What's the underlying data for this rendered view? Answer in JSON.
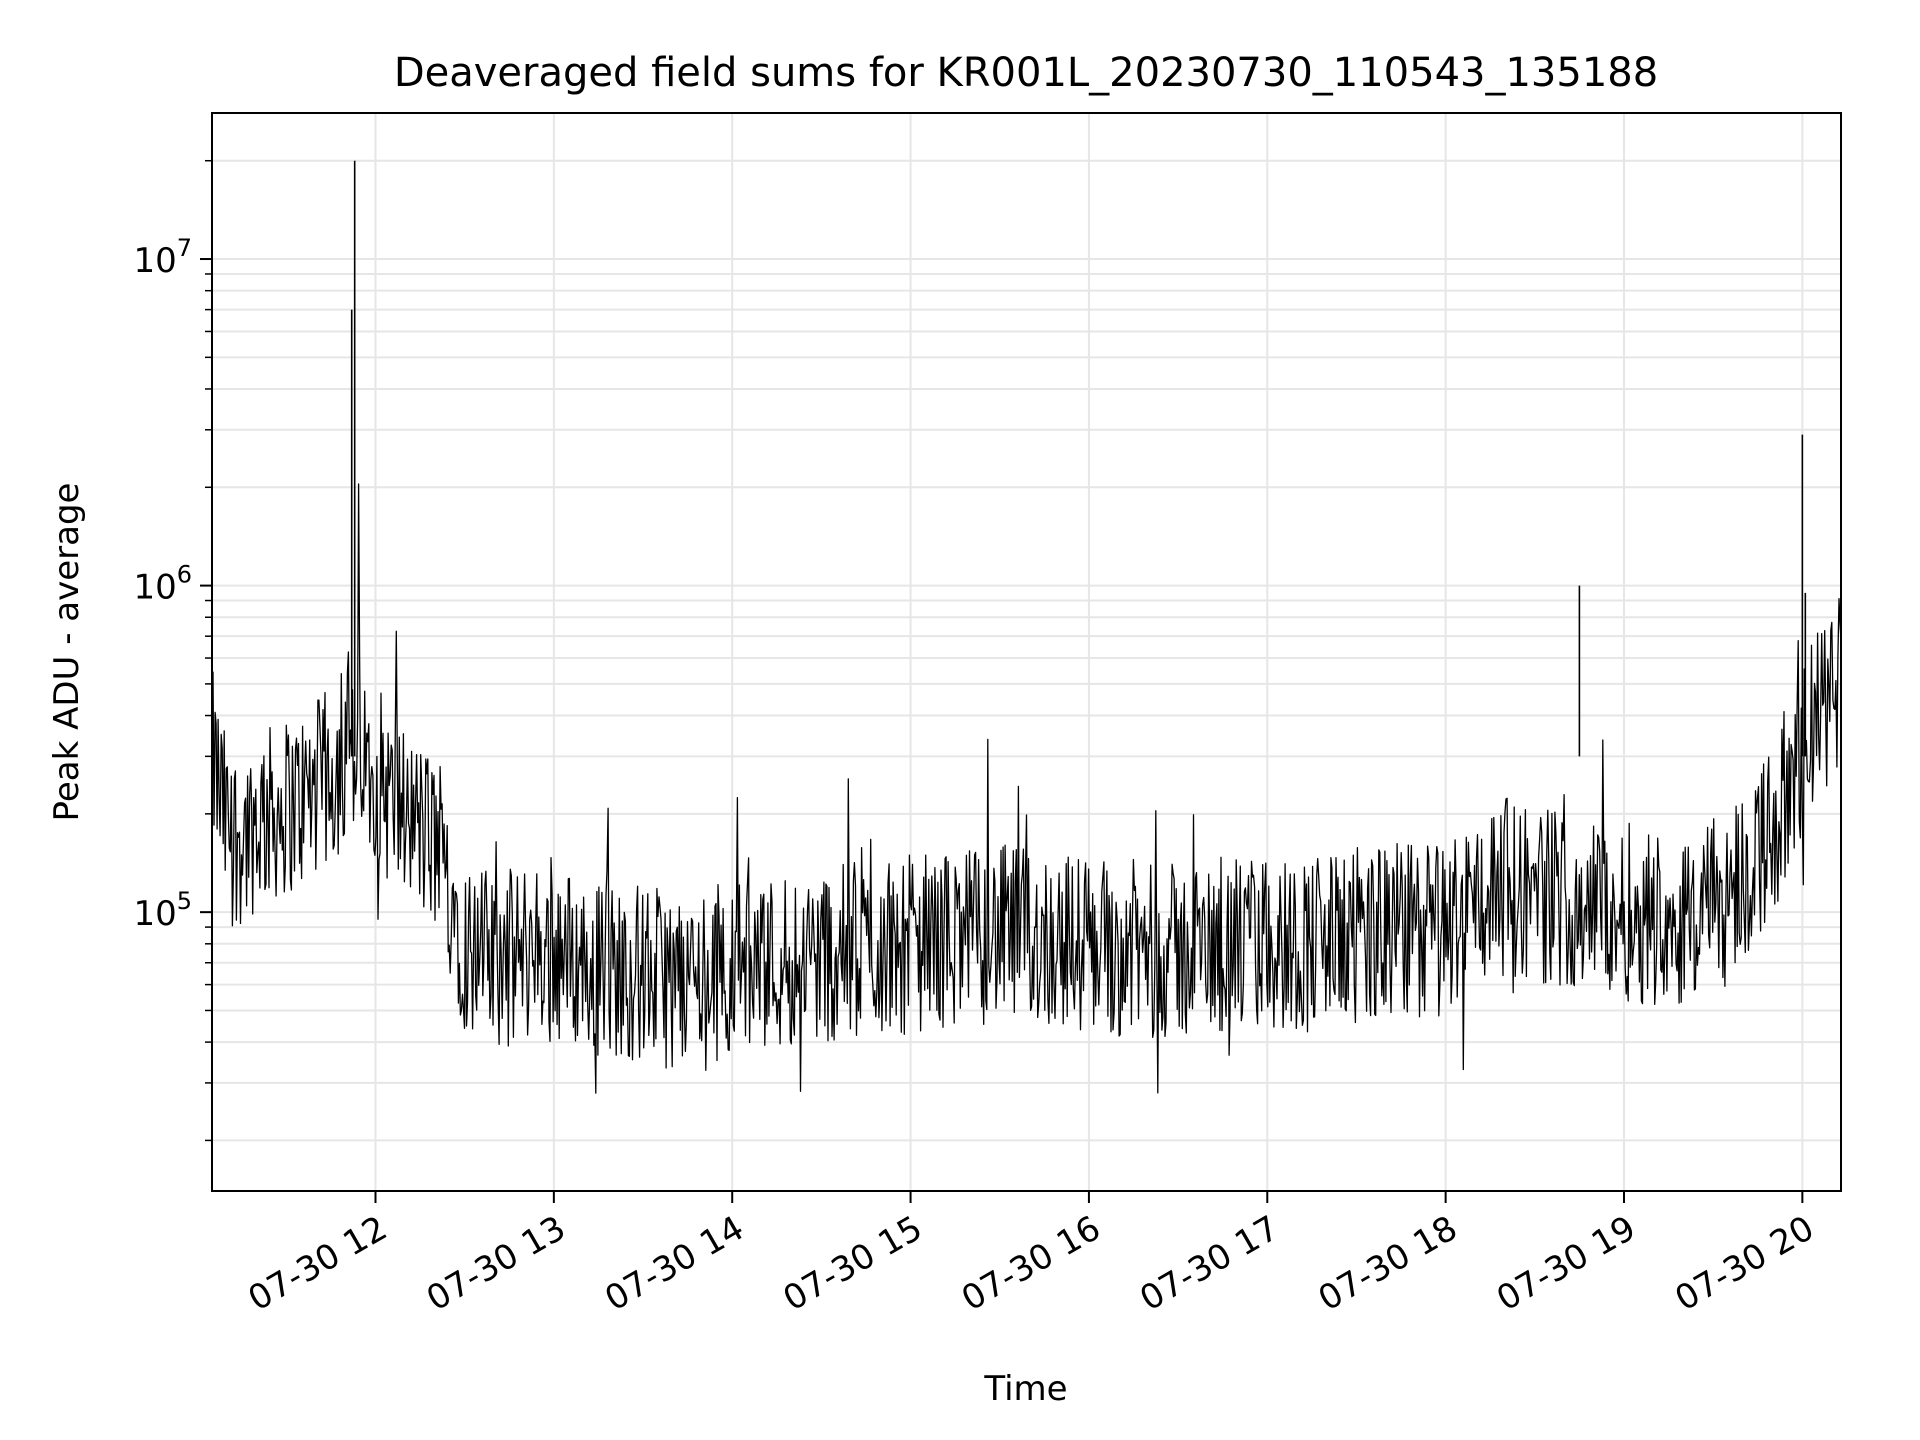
{
  "chart_data": {
    "type": "line",
    "title": "Deaveraged field sums for KR001L_20230730_110543_135188",
    "xlabel": "Time",
    "ylabel": "Peak ADU - average",
    "y_scale": "log",
    "ylim": [
      14000,
      28000000
    ],
    "xlim": [
      "2023-07-30 11:05",
      "2023-07-30 20:13"
    ],
    "grid": true,
    "line_color": "#000000",
    "x_ticks": [
      {
        "t": "2023-07-30 12:00",
        "label": "07-30 12"
      },
      {
        "t": "2023-07-30 13:00",
        "label": "07-30 13"
      },
      {
        "t": "2023-07-30 14:00",
        "label": "07-30 14"
      },
      {
        "t": "2023-07-30 15:00",
        "label": "07-30 15"
      },
      {
        "t": "2023-07-30 16:00",
        "label": "07-30 16"
      },
      {
        "t": "2023-07-30 17:00",
        "label": "07-30 17"
      },
      {
        "t": "2023-07-30 18:00",
        "label": "07-30 18"
      },
      {
        "t": "2023-07-30 19:00",
        "label": "07-30 19"
      },
      {
        "t": "2023-07-30 20:00",
        "label": "07-30 20"
      }
    ],
    "y_ticks": [
      {
        "value": 100000,
        "base": "10",
        "exp": "5"
      },
      {
        "value": 1000000,
        "base": "10",
        "exp": "6"
      },
      {
        "value": 10000000,
        "base": "10",
        "exp": "7"
      }
    ],
    "series": [
      {
        "x": [
          "2023-07-30 11:05",
          "2023-07-30 11:10",
          "2023-07-30 11:15",
          "2023-07-30 11:20",
          "2023-07-30 11:25",
          "2023-07-30 11:30",
          "2023-07-30 11:35",
          "2023-07-30 11:40",
          "2023-07-30 11:45",
          "2023-07-30 11:50",
          "2023-07-30 11:53",
          "2023-07-30 11:55",
          "2023-07-30 12:00",
          "2023-07-30 12:05",
          "2023-07-30 12:10",
          "2023-07-30 12:15",
          "2023-07-30 12:20",
          "2023-07-30 12:25",
          "2023-07-30 12:30",
          "2023-07-30 12:35",
          "2023-07-30 12:40",
          "2023-07-30 12:45",
          "2023-07-30 12:50",
          "2023-07-30 12:55",
          "2023-07-30 13:00",
          "2023-07-30 13:10",
          "2023-07-30 13:20",
          "2023-07-30 13:30",
          "2023-07-30 13:40",
          "2023-07-30 13:50",
          "2023-07-30 14:00",
          "2023-07-30 14:10",
          "2023-07-30 14:20",
          "2023-07-30 14:30",
          "2023-07-30 14:40",
          "2023-07-30 14:50",
          "2023-07-30 15:00",
          "2023-07-30 15:10",
          "2023-07-30 15:20",
          "2023-07-30 15:30",
          "2023-07-30 15:40",
          "2023-07-30 15:50",
          "2023-07-30 16:00",
          "2023-07-30 16:10",
          "2023-07-30 16:20",
          "2023-07-30 16:30",
          "2023-07-30 16:40",
          "2023-07-30 16:50",
          "2023-07-30 17:00",
          "2023-07-30 17:10",
          "2023-07-30 17:20",
          "2023-07-30 17:30",
          "2023-07-30 17:40",
          "2023-07-30 17:50",
          "2023-07-30 18:00",
          "2023-07-30 18:10",
          "2023-07-30 18:20",
          "2023-07-30 18:30",
          "2023-07-30 18:40",
          "2023-07-30 18:50",
          "2023-07-30 19:00",
          "2023-07-30 19:10",
          "2023-07-30 19:20",
          "2023-07-30 19:30",
          "2023-07-30 19:40",
          "2023-07-30 19:50",
          "2023-07-30 20:00",
          "2023-07-30 20:05",
          "2023-07-30 20:10",
          "2023-07-30 20:13"
        ],
        "y": [
          300000,
          180000,
          170000,
          190000,
          200000,
          210000,
          220000,
          240000,
          260000,
          300000,
          20000000,
          260000,
          280000,
          220000,
          200000,
          180000,
          160000,
          120000,
          80000,
          75000,
          70000,
          72000,
          75000,
          78000,
          75000,
          70000,
          66000,
          65000,
          62000,
          64000,
          68000,
          70000,
          72000,
          74000,
          76000,
          78000,
          80000,
          82000,
          84000,
          86000,
          84000,
          82000,
          80000,
          78000,
          76000,
          75000,
          76000,
          78000,
          80000,
          80000,
          82000,
          84000,
          86000,
          88000,
          90000,
          110000,
          120000,
          115000,
          110000,
          105000,
          100000,
          98000,
          95000,
          100000,
          130000,
          180000,
          300000,
          400000,
          450000,
          550000
        ]
      }
    ],
    "annotations": [
      {
        "x": "2023-07-30 11:53",
        "y": 20000000,
        "note": "spike"
      },
      {
        "x": "2023-07-30 11:52",
        "y": 7000000,
        "note": "spike"
      },
      {
        "x": "2023-07-30 20:00",
        "y": 2900000,
        "note": "spike"
      },
      {
        "x": "2023-07-30 18:45",
        "y": 1000000,
        "note": "spike"
      },
      {
        "x": "2023-07-30 20:01",
        "y": 950000,
        "note": "spike"
      }
    ]
  }
}
